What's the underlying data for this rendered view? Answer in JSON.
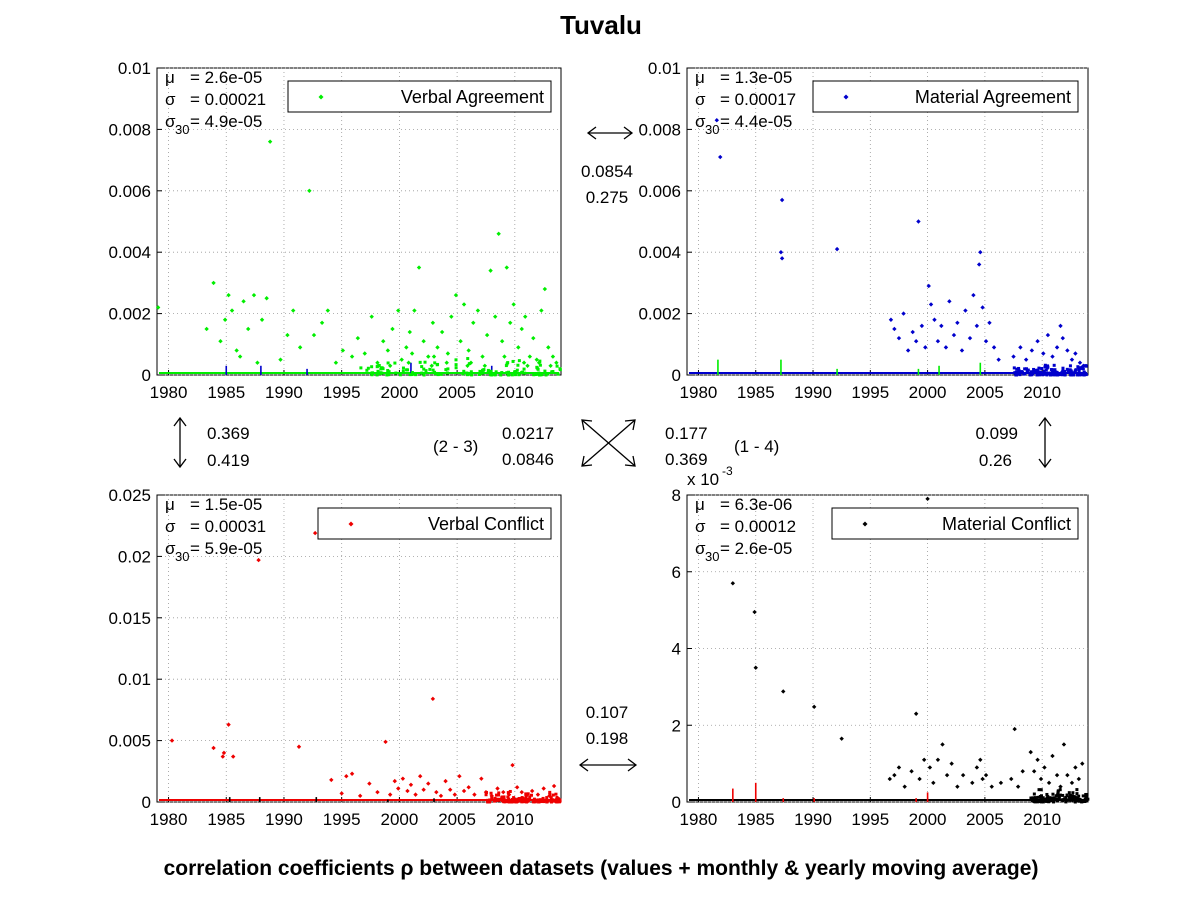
{
  "title": "Tuvalu",
  "caption": "correlation coefficients ρ between datasets (values + monthly & yearly moving average)",
  "stat_labels": {
    "mu": "μ",
    "sigma": "σ",
    "sigma30_base": "σ",
    "sigma30_sub": "30"
  },
  "chart_data": [
    {
      "type": "scatter",
      "name": "Verbal Agreement",
      "color": "#00ee00",
      "title": "",
      "xlabel": "",
      "ylabel": "",
      "xlim": [
        1979,
        2014
      ],
      "ylim": [
        0,
        0.01
      ],
      "xticks": [
        1980,
        1985,
        1990,
        1995,
        2000,
        2005,
        2010
      ],
      "yticks": [
        "0",
        "0.002",
        "0.004",
        "0.006",
        "0.008",
        "0.01"
      ],
      "ytick_values": [
        0,
        0.002,
        0.004,
        0.006,
        0.008,
        0.01
      ],
      "exponent_label": "",
      "legend": {
        "entry": "Verbal Agreement",
        "placement": "top-right"
      },
      "stats": {
        "mu": "= 2.6e-05",
        "sigma": "= 0.00021",
        "sigma30": "= 4.9e-05"
      },
      "points": [
        [
          1979.1,
          0.0022
        ],
        [
          1983.3,
          0.0015
        ],
        [
          1983.9,
          0.003
        ],
        [
          1984.5,
          0.0011
        ],
        [
          1984.9,
          0.0018
        ],
        [
          1985.2,
          0.0026
        ],
        [
          1985.5,
          0.0021
        ],
        [
          1985.9,
          0.0008
        ],
        [
          1986.2,
          0.0006
        ],
        [
          1986.5,
          0.0024
        ],
        [
          1986.9,
          0.0015
        ],
        [
          1987.4,
          0.0026
        ],
        [
          1987.7,
          0.0004
        ],
        [
          1988.1,
          0.0018
        ],
        [
          1988.5,
          0.0025
        ],
        [
          1988.8,
          0.0076
        ],
        [
          1989.7,
          0.0005
        ],
        [
          1990.3,
          0.0013
        ],
        [
          1990.8,
          0.0021
        ],
        [
          1991.4,
          0.0009
        ],
        [
          1992.2,
          0.006
        ],
        [
          1992.6,
          0.0013
        ],
        [
          1993.3,
          0.0017
        ],
        [
          1993.8,
          0.0021
        ],
        [
          1994.5,
          0.0004
        ],
        [
          1995.1,
          0.0008
        ],
        [
          1995.9,
          0.0006
        ],
        [
          1996.4,
          0.0012
        ],
        [
          1997.0,
          0.0007
        ],
        [
          1997.6,
          0.0019
        ],
        [
          1998.1,
          0.0004
        ],
        [
          1998.6,
          0.0011
        ],
        [
          1999.0,
          0.0008
        ],
        [
          1999.4,
          0.0015
        ],
        [
          1999.9,
          0.0021
        ],
        [
          2000.2,
          0.0005
        ],
        [
          2000.6,
          0.0009
        ],
        [
          2000.9,
          0.0014
        ],
        [
          2001.3,
          0.0021
        ],
        [
          2001.7,
          0.0035
        ],
        [
          2002.1,
          0.0011
        ],
        [
          2002.5,
          0.0006
        ],
        [
          2002.9,
          0.0017
        ],
        [
          2003.3,
          0.0009
        ],
        [
          2003.7,
          0.0014
        ],
        [
          2004.1,
          0.0004
        ],
        [
          2004.5,
          0.0019
        ],
        [
          2004.9,
          0.0026
        ],
        [
          2005.3,
          0.0011
        ],
        [
          2005.6,
          0.0023
        ],
        [
          2006.0,
          0.0008
        ],
        [
          2006.4,
          0.0017
        ],
        [
          2006.8,
          0.0021
        ],
        [
          2007.2,
          0.0006
        ],
        [
          2007.6,
          0.0013
        ],
        [
          2007.9,
          0.0034
        ],
        [
          2008.3,
          0.0019
        ],
        [
          2008.6,
          0.0046
        ],
        [
          2008.9,
          0.0011
        ],
        [
          2009.3,
          0.0035
        ],
        [
          2009.6,
          0.0017
        ],
        [
          2009.9,
          0.0023
        ],
        [
          2010.3,
          0.0009
        ],
        [
          2010.6,
          0.0015
        ],
        [
          2010.9,
          0.0019
        ],
        [
          2011.3,
          0.0006
        ],
        [
          2011.6,
          0.0012
        ],
        [
          2011.9,
          0.0005
        ],
        [
          2012.3,
          0.0021
        ],
        [
          2012.6,
          0.0028
        ],
        [
          2012.9,
          0.0009
        ],
        [
          2013.3,
          0.0006
        ],
        [
          2013.6,
          0.0004
        ],
        [
          2000.8,
          0.0004
        ],
        [
          2001.1,
          0.0007
        ],
        [
          2003.0,
          0.0006
        ],
        [
          2004.2,
          0.0007
        ],
        [
          2006.2,
          0.0004
        ],
        [
          2009.1,
          0.0006
        ],
        [
          2010.8,
          0.0004
        ],
        [
          1999.2,
          0.0003
        ],
        [
          2002.8,
          0.0003
        ],
        [
          2005.9,
          0.0003
        ],
        [
          2007.4,
          0.0003
        ],
        [
          2011.1,
          0.0003
        ],
        [
          2012.1,
          0.0004
        ],
        [
          2013.1,
          0.0003
        ]
      ],
      "dense_from": 1996.5,
      "dense_to": 2014,
      "dense_max": 0.0006,
      "spikes": [
        [
          1985.0,
          0.0003,
          "#0000cc"
        ],
        [
          1988.0,
          0.0003,
          "#0000cc"
        ],
        [
          1992.0,
          0.0002,
          "#0000cc"
        ],
        [
          2001.0,
          0.0004,
          "#0000cc"
        ],
        [
          2008.0,
          0.0003,
          "#0000cc"
        ]
      ]
    },
    {
      "type": "scatter",
      "name": "Material Agreement",
      "color": "#0000cc",
      "title": "",
      "xlabel": "",
      "ylabel": "",
      "xlim": [
        1979,
        2014
      ],
      "ylim": [
        0,
        0.01
      ],
      "xticks": [
        1980,
        1985,
        1990,
        1995,
        2000,
        2005,
        2010
      ],
      "yticks": [
        "0",
        "0.002",
        "0.004",
        "0.006",
        "0.008",
        "0.01"
      ],
      "ytick_values": [
        0,
        0.002,
        0.004,
        0.006,
        0.008,
        0.01
      ],
      "exponent_label": "",
      "legend": {
        "entry": "Material Agreement",
        "placement": "top-right"
      },
      "stats": {
        "mu": "= 1.3e-05",
        "sigma": "= 0.00017",
        "sigma30": "= 4.4e-05"
      },
      "points": [
        [
          1981.6,
          0.0083
        ],
        [
          1981.9,
          0.0071
        ],
        [
          1987.3,
          0.0057
        ],
        [
          1987.2,
          0.004
        ],
        [
          1987.3,
          0.0038
        ],
        [
          1992.1,
          0.0041
        ],
        [
          1996.8,
          0.0018
        ],
        [
          1997.1,
          0.0015
        ],
        [
          1997.5,
          0.0012
        ],
        [
          1997.9,
          0.002
        ],
        [
          1998.3,
          0.0008
        ],
        [
          1998.7,
          0.0014
        ],
        [
          1999.0,
          0.0011
        ],
        [
          1999.2,
          0.005
        ],
        [
          1999.5,
          0.0016
        ],
        [
          1999.8,
          0.0009
        ],
        [
          2000.1,
          0.0029
        ],
        [
          2000.3,
          0.0023
        ],
        [
          2000.6,
          0.0018
        ],
        [
          2000.9,
          0.0011
        ],
        [
          2001.2,
          0.0016
        ],
        [
          2001.6,
          0.0009
        ],
        [
          2001.9,
          0.0024
        ],
        [
          2002.3,
          0.0013
        ],
        [
          2002.6,
          0.0017
        ],
        [
          2003.0,
          0.0008
        ],
        [
          2003.3,
          0.0021
        ],
        [
          2003.7,
          0.0012
        ],
        [
          2004.0,
          0.0026
        ],
        [
          2004.3,
          0.0016
        ],
        [
          2004.5,
          0.0036
        ],
        [
          2004.6,
          0.004
        ],
        [
          2004.8,
          0.0022
        ],
        [
          2005.1,
          0.0011
        ],
        [
          2005.4,
          0.0017
        ],
        [
          2005.8,
          0.0009
        ],
        [
          2006.2,
          0.0005
        ],
        [
          2007.5,
          0.0006
        ],
        [
          2008.1,
          0.0009
        ],
        [
          2008.6,
          0.0005
        ],
        [
          2009.1,
          0.0008
        ],
        [
          2009.6,
          0.0011
        ],
        [
          2010.1,
          0.0007
        ],
        [
          2010.5,
          0.0013
        ],
        [
          2010.9,
          0.0006
        ],
        [
          2011.3,
          0.0009
        ],
        [
          2011.6,
          0.0016
        ],
        [
          2011.8,
          0.0012
        ],
        [
          2012.2,
          0.0008
        ],
        [
          2012.6,
          0.0005
        ],
        [
          2012.9,
          0.0007
        ],
        [
          2013.3,
          0.0004
        ],
        [
          2013.6,
          0.0003
        ]
      ],
      "dense_from": 2007.5,
      "dense_to": 2014,
      "dense_max": 0.0004,
      "spikes": [
        [
          1981.7,
          0.0005,
          "#00ee00"
        ],
        [
          1987.2,
          0.0005,
          "#00ee00"
        ],
        [
          1992.1,
          0.0002,
          "#00ee00"
        ],
        [
          1999.2,
          0.0002,
          "#00ee00"
        ],
        [
          2001.0,
          0.0003,
          "#00ee00"
        ],
        [
          2004.6,
          0.0004,
          "#00ee00"
        ]
      ]
    },
    {
      "type": "scatter",
      "name": "Verbal Conflict",
      "color": "#ee0000",
      "title": "",
      "xlabel": "",
      "ylabel": "",
      "xlim": [
        1979,
        2014
      ],
      "ylim": [
        0,
        0.025
      ],
      "xticks": [
        1980,
        1985,
        1990,
        1995,
        2000,
        2005,
        2010
      ],
      "yticks": [
        "0",
        "0.005",
        "0.01",
        "0.015",
        "0.02",
        "0.025"
      ],
      "ytick_values": [
        0,
        0.005,
        0.01,
        0.015,
        0.02,
        0.025
      ],
      "exponent_label": "",
      "legend": {
        "entry": "Verbal Conflict",
        "placement": "top-right"
      },
      "stats": {
        "mu": "= 1.5e-05",
        "sigma": "= 0.00031",
        "sigma30": "= 5.9e-05"
      },
      "points": [
        [
          1980.3,
          0.005
        ],
        [
          1983.9,
          0.0044
        ],
        [
          1984.7,
          0.0037
        ],
        [
          1984.8,
          0.004
        ],
        [
          1985.2,
          0.0063
        ],
        [
          1985.6,
          0.0037
        ],
        [
          1987.8,
          0.0197
        ],
        [
          1991.3,
          0.0045
        ],
        [
          1992.7,
          0.0219
        ],
        [
          1994.1,
          0.0018
        ],
        [
          1995.0,
          0.0007
        ],
        [
          1995.4,
          0.0021
        ],
        [
          1995.9,
          0.0023
        ],
        [
          1996.6,
          0.0005
        ],
        [
          1997.4,
          0.0015
        ],
        [
          1998.1,
          0.0008
        ],
        [
          1998.8,
          0.0049
        ],
        [
          1999.2,
          0.0006
        ],
        [
          1999.6,
          0.0017
        ],
        [
          1999.9,
          0.0011
        ],
        [
          2000.3,
          0.0019
        ],
        [
          2000.7,
          0.0009
        ],
        [
          2001.0,
          0.0014
        ],
        [
          2001.4,
          0.0006
        ],
        [
          2001.8,
          0.0021
        ],
        [
          2002.1,
          0.001
        ],
        [
          2002.5,
          0.0015
        ],
        [
          2002.9,
          0.0084
        ],
        [
          2003.2,
          0.0008
        ],
        [
          2003.6,
          0.0005
        ],
        [
          2004.0,
          0.0017
        ],
        [
          2004.4,
          0.001
        ],
        [
          2004.8,
          0.0006
        ],
        [
          2005.2,
          0.0021
        ],
        [
          2005.6,
          0.0009
        ],
        [
          2006.0,
          0.0012
        ],
        [
          2006.5,
          0.0006
        ],
        [
          2007.1,
          0.0019
        ],
        [
          2007.5,
          0.0008
        ],
        [
          2008.0,
          0.0005
        ],
        [
          2008.5,
          0.0011
        ],
        [
          2009.0,
          0.0008
        ],
        [
          2009.5,
          0.0006
        ],
        [
          2009.8,
          0.003
        ],
        [
          2010.2,
          0.0012
        ],
        [
          2010.6,
          0.0008
        ],
        [
          2011.0,
          0.0005
        ],
        [
          2011.5,
          0.0009
        ],
        [
          2012.0,
          0.0006
        ],
        [
          2012.5,
          0.0011
        ],
        [
          2013.0,
          0.0005
        ],
        [
          2013.4,
          0.0013
        ]
      ],
      "dense_from": 2007.5,
      "dense_to": 2014,
      "dense_max": 0.0009,
      "spikes": [
        [
          1985.3,
          0.0004,
          "#000000"
        ],
        [
          1987.9,
          0.0004,
          "#000000"
        ],
        [
          1992.8,
          0.0004,
          "#000000"
        ],
        [
          1999.0,
          0.0002,
          "#000000"
        ],
        [
          2003.0,
          0.0003,
          "#000000"
        ],
        [
          2009.0,
          0.0003,
          "#000000"
        ]
      ]
    },
    {
      "type": "scatter",
      "name": "Material Conflict",
      "color": "#000000",
      "title": "",
      "xlabel": "",
      "ylabel": "",
      "xlim": [
        1979,
        2014
      ],
      "ylim": [
        0,
        0.008
      ],
      "xticks": [
        1980,
        1985,
        1990,
        1995,
        2000,
        2005,
        2010
      ],
      "yticks": [
        "0",
        "2",
        "4",
        "6",
        "8"
      ],
      "ytick_values": [
        0,
        0.002,
        0.004,
        0.006,
        0.008
      ],
      "exponent_label": "x 10",
      "exponent_power": "-3",
      "legend": {
        "entry": "Material Conflict",
        "placement": "top-right"
      },
      "stats": {
        "mu": "= 6.3e-06",
        "sigma": "= 0.00012",
        "sigma30": "= 2.6e-05"
      },
      "points": [
        [
          1983.0,
          0.0057
        ],
        [
          1984.9,
          0.00495
        ],
        [
          1985.0,
          0.0035
        ],
        [
          1987.4,
          0.00288
        ],
        [
          1990.1,
          0.00248
        ],
        [
          1992.5,
          0.00165
        ],
        [
          1996.7,
          0.0006
        ],
        [
          1997.1,
          0.0007
        ],
        [
          1997.5,
          0.0009
        ],
        [
          1998.0,
          0.0004
        ],
        [
          1998.6,
          0.0008
        ],
        [
          1999.0,
          0.0023
        ],
        [
          1999.3,
          0.0006
        ],
        [
          1999.7,
          0.0011
        ],
        [
          2000.0,
          0.0079
        ],
        [
          2000.2,
          0.0009
        ],
        [
          2000.5,
          0.0005
        ],
        [
          2000.9,
          0.0011
        ],
        [
          2001.3,
          0.0015
        ],
        [
          2001.7,
          0.0007
        ],
        [
          2002.1,
          0.001
        ],
        [
          2002.6,
          0.0004
        ],
        [
          2003.1,
          0.0007
        ],
        [
          2003.9,
          0.0005
        ],
        [
          2004.3,
          0.0009
        ],
        [
          2004.6,
          0.0011
        ],
        [
          2004.8,
          0.0006
        ],
        [
          2005.1,
          0.0007
        ],
        [
          2005.6,
          0.0004
        ],
        [
          2006.4,
          0.0005
        ],
        [
          2007.3,
          0.0006
        ],
        [
          2007.6,
          0.0019
        ],
        [
          2007.9,
          0.0004
        ],
        [
          2008.3,
          0.0008
        ],
        [
          2009.0,
          0.0013
        ],
        [
          2009.3,
          0.0008
        ],
        [
          2009.6,
          0.0011
        ],
        [
          2009.9,
          0.0006
        ],
        [
          2010.2,
          0.0009
        ],
        [
          2010.6,
          0.0005
        ],
        [
          2010.9,
          0.0012
        ],
        [
          2011.3,
          0.0007
        ],
        [
          2011.6,
          0.0004
        ],
        [
          2011.9,
          0.0015
        ],
        [
          2012.2,
          0.0007
        ],
        [
          2012.6,
          0.0005
        ],
        [
          2012.9,
          0.0009
        ],
        [
          2013.2,
          0.0006
        ],
        [
          2013.5,
          0.001
        ]
      ],
      "dense_from": 2009.0,
      "dense_to": 2014,
      "dense_max": 0.00035,
      "spikes": [
        [
          1983.0,
          0.00035,
          "#ee0000"
        ],
        [
          1985.0,
          0.0005,
          "#ee0000"
        ],
        [
          1987.4,
          0.0001,
          "#ee0000"
        ],
        [
          1990.1,
          0.0001,
          "#ee0000"
        ],
        [
          1999.0,
          0.0001,
          "#ee0000"
        ],
        [
          2000.0,
          0.00025,
          "#ee0000"
        ]
      ]
    }
  ],
  "correlations": {
    "top": {
      "a": "0.0854",
      "b": "0.275"
    },
    "left": {
      "a": "0.369",
      "b": "0.419"
    },
    "right": {
      "a": "0.099",
      "b": "0.26"
    },
    "bottom": {
      "a": "0.107",
      "b": "0.198"
    },
    "diag_23": {
      "label": "(2 - 3)",
      "a": "0.0217",
      "b": "0.0846"
    },
    "diag_14": {
      "label": "(1 - 4)",
      "a": "0.177",
      "b": "0.369"
    }
  }
}
